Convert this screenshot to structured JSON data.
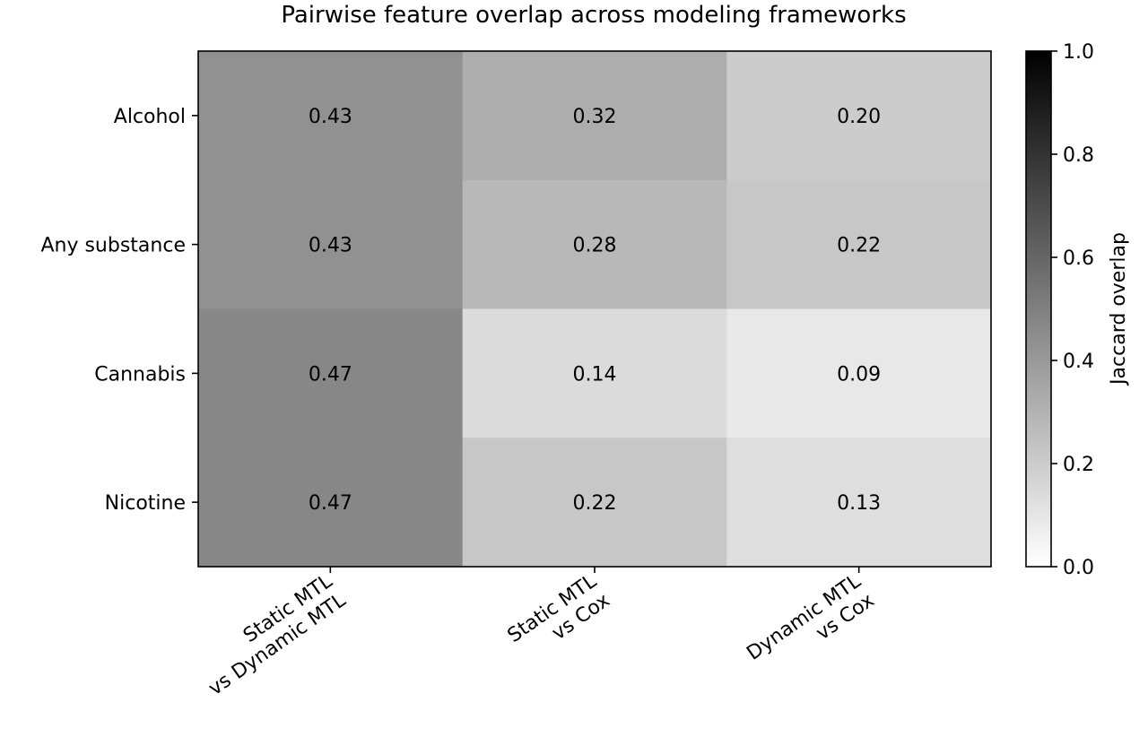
{
  "chart_data": {
    "type": "heatmap",
    "title": "Pairwise feature overlap across modeling frameworks",
    "rows": [
      "Alcohol",
      "Any substance",
      "Cannabis",
      "Nicotine"
    ],
    "columns": [
      {
        "lines": [
          "Static MTL",
          "vs Dynamic MTL"
        ]
      },
      {
        "lines": [
          "Static MTL",
          "vs Cox"
        ]
      },
      {
        "lines": [
          "Dynamic MTL",
          "vs Cox"
        ]
      }
    ],
    "values": [
      [
        0.43,
        0.32,
        0.2
      ],
      [
        0.43,
        0.28,
        0.22
      ],
      [
        0.47,
        0.14,
        0.09
      ],
      [
        0.47,
        0.22,
        0.13
      ]
    ],
    "cell_labels": [
      [
        "0.43",
        "0.32",
        "0.20"
      ],
      [
        "0.43",
        "0.28",
        "0.22"
      ],
      [
        "0.47",
        "0.14",
        "0.09"
      ],
      [
        "0.47",
        "0.22",
        "0.13"
      ]
    ],
    "colorbar": {
      "label": "Jaccard overlap",
      "range": [
        0.0,
        1.0
      ],
      "ticks": [
        "0.0",
        "0.2",
        "0.4",
        "0.6",
        "0.8",
        "1.0"
      ],
      "colormap": {
        "low": "#ffffff",
        "high": "#000000"
      }
    },
    "grid": false
  }
}
